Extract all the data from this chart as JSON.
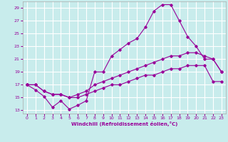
{
  "xlabel": "Windchill (Refroidissement éolien,°C)",
  "bg_color": "#c8ecec",
  "grid_color": "#ffffff",
  "line_color": "#990099",
  "x_ticks": [
    0,
    1,
    2,
    3,
    4,
    5,
    6,
    7,
    8,
    9,
    10,
    11,
    12,
    13,
    14,
    15,
    16,
    17,
    18,
    19,
    20,
    21,
    22,
    23
  ],
  "y_ticks": [
    13,
    15,
    17,
    19,
    21,
    23,
    25,
    27,
    29
  ],
  "xlim": [
    -0.5,
    23.5
  ],
  "ylim": [
    12.5,
    30.0
  ],
  "line1_x": [
    0,
    1,
    2,
    3,
    4,
    5,
    6,
    7,
    8,
    9,
    10,
    11,
    12,
    13,
    14,
    15,
    16,
    17,
    18,
    19,
    20,
    21,
    22,
    23
  ],
  "line1_y": [
    17.0,
    16.2,
    15.2,
    13.5,
    14.5,
    13.2,
    13.8,
    14.5,
    19.0,
    19.0,
    21.5,
    22.5,
    23.5,
    24.2,
    26.0,
    28.5,
    29.5,
    29.5,
    27.0,
    24.5,
    23.0,
    21.0,
    21.0,
    19.0
  ],
  "line2_x": [
    0,
    1,
    2,
    3,
    4,
    5,
    6,
    7,
    8,
    9,
    10,
    11,
    12,
    13,
    14,
    15,
    16,
    17,
    18,
    19,
    20,
    21,
    22,
    23
  ],
  "line2_y": [
    17.0,
    17.0,
    16.0,
    15.5,
    15.5,
    15.0,
    15.5,
    16.0,
    17.0,
    17.5,
    18.0,
    18.5,
    19.0,
    19.5,
    20.0,
    20.5,
    21.0,
    21.5,
    21.5,
    22.0,
    22.0,
    21.5,
    21.0,
    19.0
  ],
  "line3_x": [
    0,
    1,
    2,
    3,
    4,
    5,
    6,
    7,
    8,
    9,
    10,
    11,
    12,
    13,
    14,
    15,
    16,
    17,
    18,
    19,
    20,
    21,
    22,
    23
  ],
  "line3_y": [
    17.0,
    17.0,
    16.0,
    15.5,
    15.5,
    15.0,
    15.0,
    15.5,
    16.0,
    16.5,
    17.0,
    17.0,
    17.5,
    18.0,
    18.5,
    18.5,
    19.0,
    19.5,
    19.5,
    20.0,
    20.0,
    20.0,
    17.5,
    17.5
  ]
}
